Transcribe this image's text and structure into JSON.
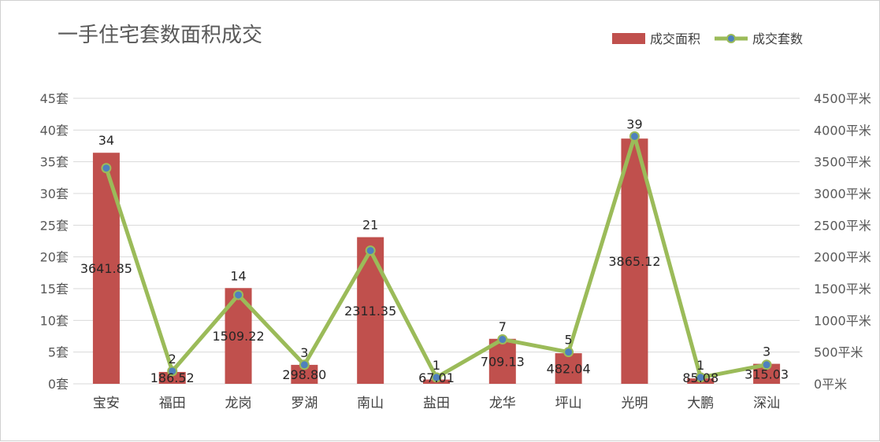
{
  "chart_data": {
    "type": "bar",
    "title": "一手住宅套数面积成交",
    "categories": [
      "宝安",
      "福田",
      "龙岗",
      "罗湖",
      "南山",
      "盐田",
      "龙华",
      "坪山",
      "光明",
      "大鹏",
      "深汕"
    ],
    "series": [
      {
        "name": "成交面积",
        "type": "bar",
        "axis": "right",
        "color": "#c0504d",
        "values": [
          3641.85,
          186.52,
          1509.22,
          298.8,
          2311.35,
          67.01,
          709.13,
          482.04,
          3865.12,
          85.08,
          315.03
        ],
        "labels": [
          "3641.85",
          "186.52",
          "1509.22",
          "298.80",
          "2311.35",
          "67.01",
          "709.13",
          "482.04",
          "3865.12",
          "85.08",
          "315.03"
        ]
      },
      {
        "name": "成交套数",
        "type": "line",
        "axis": "left",
        "color": "#9bbb59",
        "marker_color": "#4f81bd",
        "values": [
          34,
          2,
          14,
          3,
          21,
          1,
          7,
          5,
          39,
          1,
          3
        ],
        "labels": [
          "34",
          "2",
          "14",
          "3",
          "21",
          "1",
          "7",
          "5",
          "39",
          "1",
          "3"
        ]
      }
    ],
    "left_axis": {
      "range": [
        0,
        45
      ],
      "ticks": [
        "0套",
        "5套",
        "10套",
        "15套",
        "20套",
        "25套",
        "30套",
        "35套",
        "40套",
        "45套"
      ]
    },
    "right_axis": {
      "range": [
        0,
        4500
      ],
      "ticks": [
        "0平米",
        "500平米",
        "1000平米",
        "1500平米",
        "2000平米",
        "2500平米",
        "3000平米",
        "3500平米",
        "4000平米",
        "4500平米"
      ]
    },
    "legend_position": "top-right",
    "grid": true
  }
}
